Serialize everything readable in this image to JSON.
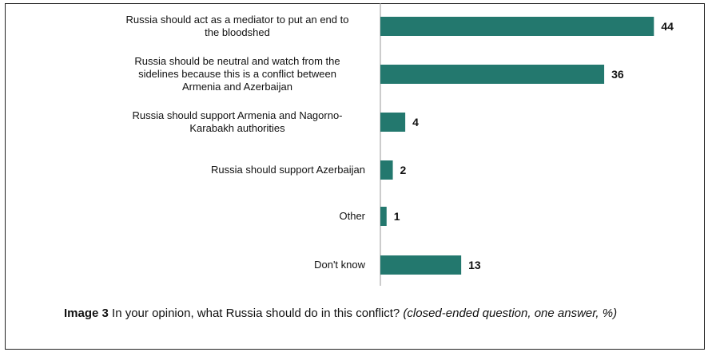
{
  "chart_data": {
    "type": "bar",
    "orientation": "horizontal",
    "categories": [
      [
        "Russia should act as a mediator to put an end to",
        "the bloodshed"
      ],
      [
        "Russia should be neutral and watch from the",
        "sidelines because this is a conflict between",
        "Armenia and Azerbaijan"
      ],
      [
        "Russia should support Armenia and Nagorno-",
        "Karabakh authorities"
      ],
      [
        "Russia should support Azerbaijan"
      ],
      [
        "Other"
      ],
      [
        "Don't know"
      ]
    ],
    "values": [
      44,
      36,
      4,
      2,
      1,
      13
    ],
    "value_labels": [
      "44",
      "36",
      "4",
      "2",
      "1",
      "13"
    ],
    "xlim": [
      0,
      50
    ],
    "bar_color": "#23786e",
    "grid": false,
    "legend": "none"
  },
  "caption": {
    "lead": "Image 3",
    "question": " In your opinion, what Russia should do in this conflict? ",
    "note": "(closed-ended question, one answer, %)"
  }
}
